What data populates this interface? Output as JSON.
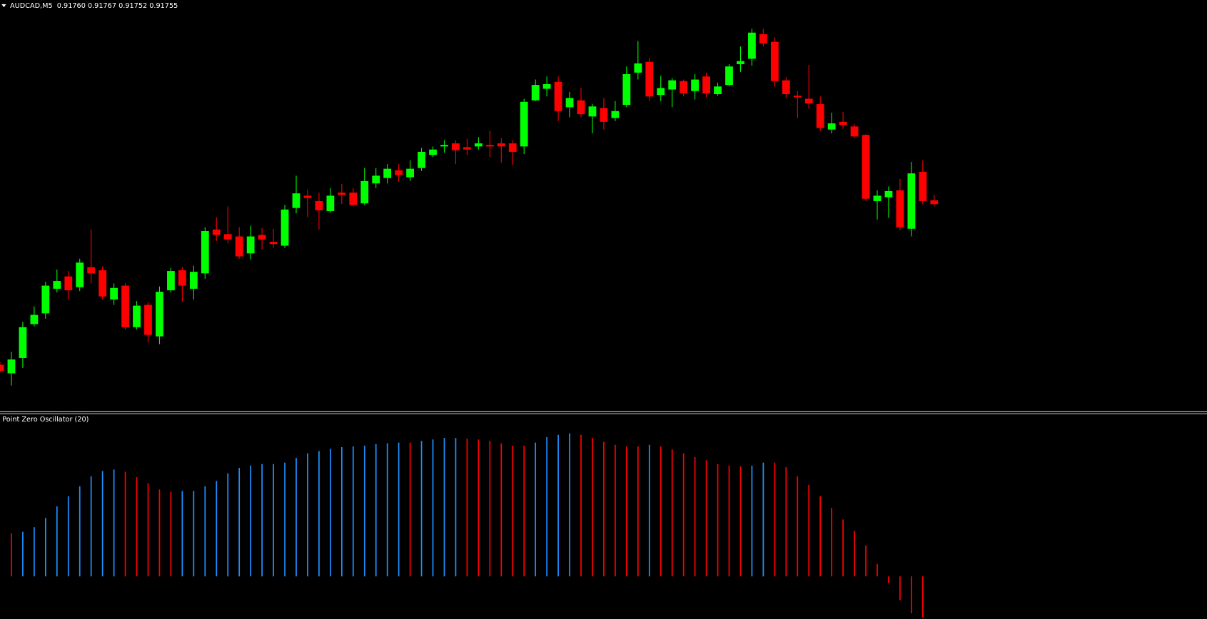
{
  "chart_data": [
    {
      "type": "candlestick",
      "title": "AUDCAD,M5  0.91760 0.91767 0.91752 0.91755",
      "up_color": "#00ff00",
      "down_color": "#ff0000",
      "ylim": [
        0.9149,
        0.9202
      ],
      "open": [
        0.91546,
        0.91535,
        0.91555,
        0.91599,
        0.91613,
        0.91645,
        0.91661,
        0.91647,
        0.91673,
        0.91669,
        0.91631,
        0.91649,
        0.91595,
        0.91624,
        0.91583,
        0.91643,
        0.91669,
        0.91645,
        0.91665,
        0.91722,
        0.91716,
        0.91713,
        0.91691,
        0.91715,
        0.91706,
        0.91701,
        0.9175,
        0.91766,
        0.91759,
        0.91746,
        0.9177,
        0.9177,
        0.91756,
        0.91782,
        0.91789,
        0.91799,
        0.9179,
        0.91802,
        0.91819,
        0.9183,
        0.91834,
        0.91829,
        0.9183,
        0.91832,
        0.91834,
        0.91834,
        0.9183,
        0.9189,
        0.91905,
        0.91914,
        0.91881,
        0.9189,
        0.91869,
        0.9188,
        0.91867,
        0.91884,
        0.91926,
        0.9194,
        0.91897,
        0.91904,
        0.91915,
        0.91902,
        0.91921,
        0.91898,
        0.9191,
        0.91937,
        0.91944,
        0.91976,
        0.91966,
        0.91916,
        0.91896,
        0.91892,
        0.91885,
        0.91852,
        0.91862,
        0.91856,
        0.91845,
        0.91759,
        0.91764,
        0.91773,
        0.91723,
        0.91797,
        0.9176
      ],
      "high": [
        0.9155,
        0.91563,
        0.91602,
        0.91622,
        0.91654,
        0.9167,
        0.91668,
        0.91684,
        0.91722,
        0.91674,
        0.91652,
        0.91652,
        0.91629,
        0.91628,
        0.91648,
        0.91672,
        0.91673,
        0.91675,
        0.91725,
        0.91738,
        0.91752,
        0.91725,
        0.91727,
        0.91724,
        0.91723,
        0.91754,
        0.91792,
        0.91774,
        0.9177,
        0.91776,
        0.91781,
        0.91776,
        0.91802,
        0.91802,
        0.91807,
        0.91807,
        0.91812,
        0.91828,
        0.9183,
        0.91838,
        0.91838,
        0.9184,
        0.91842,
        0.9185,
        0.91841,
        0.91838,
        0.91892,
        0.91917,
        0.91921,
        0.91921,
        0.91901,
        0.91906,
        0.91885,
        0.91893,
        0.91889,
        0.91934,
        0.91967,
        0.91945,
        0.91922,
        0.91919,
        0.91917,
        0.91924,
        0.91926,
        0.91913,
        0.91937,
        0.9196,
        0.91983,
        0.91983,
        0.91972,
        0.9192,
        0.91902,
        0.91936,
        0.91895,
        0.91874,
        0.91875,
        0.91859,
        0.91846,
        0.91773,
        0.91778,
        0.91788,
        0.9181,
        0.91812,
        0.91767
      ],
      "low": [
        0.91536,
        0.91519,
        0.91542,
        0.91596,
        0.91606,
        0.9164,
        0.91631,
        0.91642,
        0.91652,
        0.91631,
        0.91624,
        0.91592,
        0.91592,
        0.91575,
        0.91573,
        0.9164,
        0.91628,
        0.91631,
        0.91658,
        0.91707,
        0.91704,
        0.91684,
        0.91683,
        0.91696,
        0.91698,
        0.91698,
        0.91743,
        0.91738,
        0.91722,
        0.91744,
        0.91755,
        0.91752,
        0.91754,
        0.91776,
        0.91782,
        0.91784,
        0.91785,
        0.91798,
        0.91816,
        0.91822,
        0.91807,
        0.91819,
        0.91826,
        0.91816,
        0.91809,
        0.91806,
        0.9182,
        0.91889,
        0.91895,
        0.91863,
        0.91868,
        0.91868,
        0.91847,
        0.91852,
        0.91863,
        0.91881,
        0.91917,
        0.91889,
        0.91889,
        0.91881,
        0.91895,
        0.91891,
        0.91894,
        0.91896,
        0.91908,
        0.91927,
        0.91935,
        0.9196,
        0.91908,
        0.91893,
        0.91867,
        0.91879,
        0.9185,
        0.91847,
        0.91853,
        0.91841,
        0.91759,
        0.91735,
        0.91737,
        0.91721,
        0.91713,
        0.91755,
        0.91752
      ],
      "close": [
        0.91538,
        0.91553,
        0.91595,
        0.91611,
        0.91649,
        0.91655,
        0.91643,
        0.91679,
        0.91665,
        0.91635,
        0.91646,
        0.91595,
        0.91623,
        0.91585,
        0.91641,
        0.91668,
        0.91649,
        0.91667,
        0.9172,
        0.91715,
        0.91709,
        0.91687,
        0.91713,
        0.91709,
        0.91703,
        0.91748,
        0.91769,
        0.91763,
        0.91747,
        0.91766,
        0.91767,
        0.91754,
        0.91785,
        0.91792,
        0.91801,
        0.91793,
        0.91801,
        0.91823,
        0.91826,
        0.91832,
        0.91825,
        0.91826,
        0.91834,
        0.9183,
        0.9183,
        0.91823,
        0.91888,
        0.9191,
        0.91911,
        0.91876,
        0.91893,
        0.91872,
        0.91882,
        0.91862,
        0.91876,
        0.91924,
        0.91938,
        0.91895,
        0.91906,
        0.91916,
        0.91899,
        0.91917,
        0.91899,
        0.91908,
        0.91934,
        0.91941,
        0.91978,
        0.91964,
        0.91915,
        0.91898,
        0.91894,
        0.91886,
        0.91854,
        0.9186,
        0.91858,
        0.91843,
        0.91762,
        0.91766,
        0.91772,
        0.91725,
        0.91795,
        0.91759,
        0.91755
      ]
    },
    {
      "type": "histogram-oscillator",
      "title": "Point Zero Oscillator (20)",
      "ylim": [
        -55,
        212
      ],
      "values": [
        null,
        56,
        58,
        64,
        76,
        91,
        104,
        117,
        130,
        137,
        139,
        136,
        129,
        121,
        113,
        110,
        111,
        111,
        117,
        124,
        134,
        141,
        144,
        146,
        146,
        148,
        154,
        160,
        163,
        166,
        168,
        169,
        170,
        172,
        173,
        174,
        174,
        176,
        178,
        180,
        180,
        179,
        178,
        176,
        173,
        170,
        170,
        174,
        181,
        184,
        186,
        184,
        180,
        175,
        171,
        169,
        169,
        171,
        169,
        165,
        160,
        155,
        151,
        146,
        144,
        143,
        144,
        148,
        148,
        142,
        130,
        119,
        104,
        89,
        74,
        59,
        40,
        16,
        -9,
        -31,
        -48,
        -53,
        null
      ],
      "colors": [
        null,
        "#ff0000",
        "#1e90ff",
        "#1e90ff",
        "#1e90ff",
        "#1e90ff",
        "#1e90ff",
        "#1e90ff",
        "#1e90ff",
        "#1e90ff",
        "#1e90ff",
        "#ff0000",
        "#ff0000",
        "#ff0000",
        "#ff0000",
        "#ff0000",
        "#1e90ff",
        "#1e90ff",
        "#1e90ff",
        "#1e90ff",
        "#1e90ff",
        "#1e90ff",
        "#1e90ff",
        "#1e90ff",
        "#1e90ff",
        "#1e90ff",
        "#1e90ff",
        "#1e90ff",
        "#1e90ff",
        "#1e90ff",
        "#1e90ff",
        "#1e90ff",
        "#1e90ff",
        "#1e90ff",
        "#1e90ff",
        "#1e90ff",
        "#ff0000",
        "#1e90ff",
        "#1e90ff",
        "#1e90ff",
        "#1e90ff",
        "#ff0000",
        "#ff0000",
        "#ff0000",
        "#ff0000",
        "#ff0000",
        "#ff0000",
        "#1e90ff",
        "#1e90ff",
        "#1e90ff",
        "#1e90ff",
        "#ff0000",
        "#ff0000",
        "#ff0000",
        "#ff0000",
        "#ff0000",
        "#ff0000",
        "#1e90ff",
        "#ff0000",
        "#ff0000",
        "#ff0000",
        "#ff0000",
        "#ff0000",
        "#ff0000",
        "#ff0000",
        "#ff0000",
        "#1e90ff",
        "#1e90ff",
        "#ff0000",
        "#ff0000",
        "#ff0000",
        "#ff0000",
        "#ff0000",
        "#ff0000",
        "#ff0000",
        "#ff0000",
        "#ff0000",
        "#ff0000",
        "#ff0000",
        "#ff0000",
        "#ff0000",
        "#ff0000",
        null
      ]
    }
  ]
}
